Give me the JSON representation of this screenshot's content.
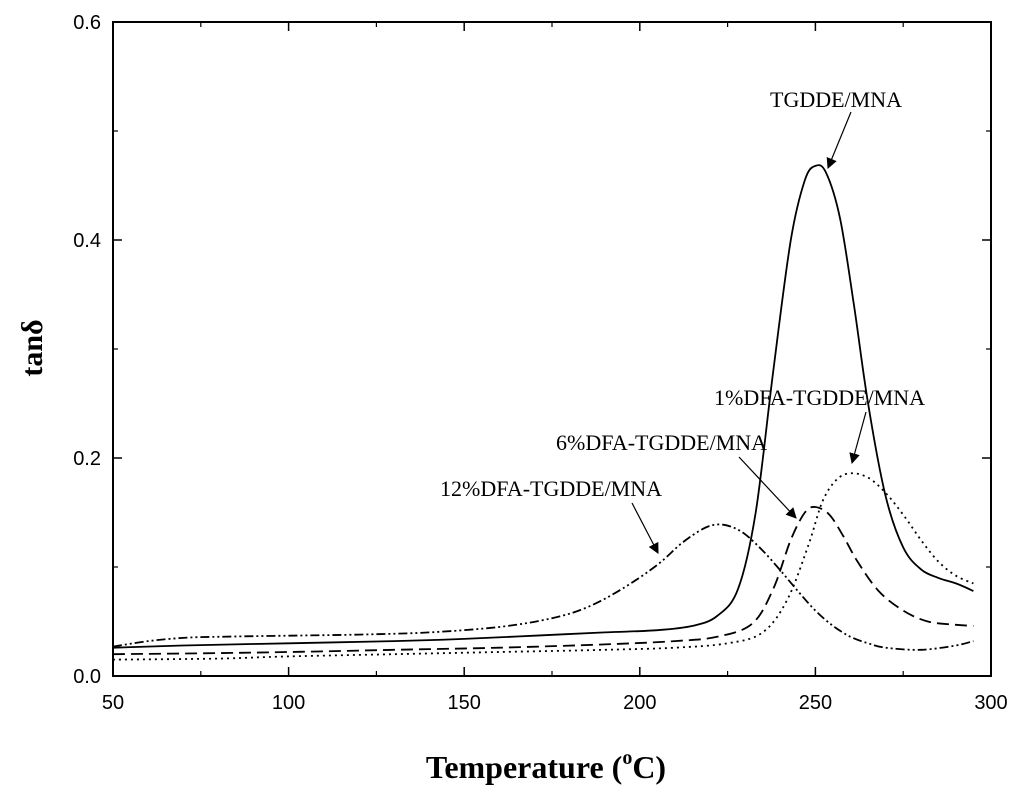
{
  "chart_data": {
    "type": "line",
    "title": "",
    "xlabel": "Temperature",
    "xlabel_unit_base": "(",
    "xlabel_unit_sup": "o",
    "xlabel_unit_rest": "C)",
    "ylabel": "tanδ",
    "xlim": [
      50,
      300
    ],
    "ylim": [
      0.0,
      0.6
    ],
    "x_ticks": [
      50,
      100,
      150,
      200,
      250,
      300
    ],
    "x_tick_labels": [
      "50",
      "100",
      "150",
      "200",
      "250",
      "300"
    ],
    "y_ticks": [
      0.0,
      0.2,
      0.4,
      0.6
    ],
    "y_tick_labels": [
      "0.0",
      "0.2",
      "0.4",
      "0.6"
    ],
    "grid": false,
    "series": [
      {
        "name": "TGDDE/MNA",
        "style": "solid",
        "x": [
          50,
          70,
          100,
          130,
          150,
          170,
          190,
          205,
          215,
          222,
          228,
          233,
          238,
          243,
          247,
          250,
          253,
          257,
          261,
          265,
          270,
          275,
          280,
          285,
          290,
          295
        ],
        "y": [
          0.026,
          0.028,
          0.03,
          0.032,
          0.034,
          0.037,
          0.04,
          0.042,
          0.046,
          0.055,
          0.08,
          0.15,
          0.28,
          0.4,
          0.455,
          0.468,
          0.462,
          0.42,
          0.34,
          0.25,
          0.165,
          0.118,
          0.098,
          0.09,
          0.085,
          0.078
        ]
      },
      {
        "name": "1%DFA-TGDDE/MNA",
        "style": "dotted",
        "x": [
          50,
          80,
          100,
          130,
          160,
          190,
          210,
          225,
          235,
          242,
          248,
          252,
          256,
          260,
          265,
          270,
          275,
          280,
          285,
          290,
          295
        ],
        "y": [
          0.015,
          0.016,
          0.018,
          0.02,
          0.022,
          0.024,
          0.026,
          0.03,
          0.04,
          0.07,
          0.12,
          0.16,
          0.18,
          0.186,
          0.182,
          0.168,
          0.148,
          0.125,
          0.105,
          0.092,
          0.085
        ]
      },
      {
        "name": "6%DFA-TGDDE/MNA",
        "style": "dashed",
        "x": [
          50,
          80,
          100,
          130,
          160,
          190,
          210,
          222,
          232,
          238,
          243,
          247,
          250,
          254,
          258,
          262,
          268,
          275,
          282,
          290,
          295
        ],
        "y": [
          0.02,
          0.021,
          0.022,
          0.024,
          0.026,
          0.029,
          0.032,
          0.036,
          0.048,
          0.08,
          0.125,
          0.15,
          0.155,
          0.148,
          0.128,
          0.105,
          0.078,
          0.06,
          0.05,
          0.047,
          0.046
        ]
      },
      {
        "name": "12%DFA-TGDDE/MNA",
        "style": "dash-dot-dot",
        "x": [
          50,
          60,
          70,
          80,
          100,
          120,
          140,
          160,
          175,
          185,
          195,
          205,
          212,
          218,
          222,
          226,
          230,
          235,
          240,
          245,
          250,
          255,
          260,
          265,
          270,
          280,
          290,
          295
        ],
        "y": [
          0.027,
          0.032,
          0.035,
          0.036,
          0.037,
          0.038,
          0.04,
          0.045,
          0.053,
          0.063,
          0.08,
          0.102,
          0.122,
          0.135,
          0.139,
          0.137,
          0.13,
          0.115,
          0.097,
          0.078,
          0.06,
          0.046,
          0.036,
          0.03,
          0.026,
          0.024,
          0.028,
          0.032
        ]
      }
    ],
    "annotations": [
      {
        "text": "TGDDE/MNA",
        "series": "TGDDE/MNA"
      },
      {
        "text": "1%DFA-TGDDE/MNA",
        "series": "1%DFA-TGDDE/MNA"
      },
      {
        "text": "6%DFA-TGDDE/MNA",
        "series": "6%DFA-TGDDE/MNA"
      },
      {
        "text": "12%DFA-TGDDE/MNA",
        "series": "12%DFA-TGDDE/MNA"
      }
    ]
  }
}
